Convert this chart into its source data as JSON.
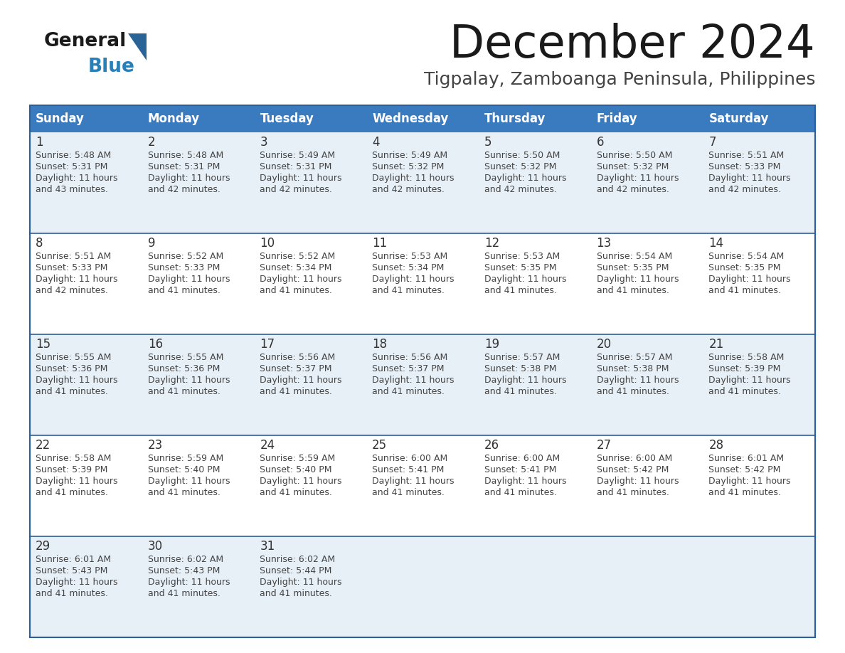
{
  "title": "December 2024",
  "subtitle": "Tigpalay, Zamboanga Peninsula, Philippines",
  "days_of_week": [
    "Sunday",
    "Monday",
    "Tuesday",
    "Wednesday",
    "Thursday",
    "Friday",
    "Saturday"
  ],
  "header_bg": "#3a7abf",
  "header_text": "#ffffff",
  "row_bg_light": "#e8f0f7",
  "row_bg_white": "#ffffff",
  "cell_border": "#2a5f9e",
  "text_color": "#444444",
  "day_num_color": "#333333",
  "logo_general_color": "#1a1a1a",
  "logo_blue_color": "#2980b9",
  "logo_triangle_color": "#2a6496",
  "title_color": "#1a1a1a",
  "subtitle_color": "#444444",
  "calendar_data": [
    [
      {
        "day": "1",
        "sunrise": "5:48 AM",
        "sunset": "5:31 PM",
        "daylight": "11 hours",
        "daylight2": "and 43 minutes."
      },
      {
        "day": "2",
        "sunrise": "5:48 AM",
        "sunset": "5:31 PM",
        "daylight": "11 hours",
        "daylight2": "and 42 minutes."
      },
      {
        "day": "3",
        "sunrise": "5:49 AM",
        "sunset": "5:31 PM",
        "daylight": "11 hours",
        "daylight2": "and 42 minutes."
      },
      {
        "day": "4",
        "sunrise": "5:49 AM",
        "sunset": "5:32 PM",
        "daylight": "11 hours",
        "daylight2": "and 42 minutes."
      },
      {
        "day": "5",
        "sunrise": "5:50 AM",
        "sunset": "5:32 PM",
        "daylight": "11 hours",
        "daylight2": "and 42 minutes."
      },
      {
        "day": "6",
        "sunrise": "5:50 AM",
        "sunset": "5:32 PM",
        "daylight": "11 hours",
        "daylight2": "and 42 minutes."
      },
      {
        "day": "7",
        "sunrise": "5:51 AM",
        "sunset": "5:33 PM",
        "daylight": "11 hours",
        "daylight2": "and 42 minutes."
      }
    ],
    [
      {
        "day": "8",
        "sunrise": "5:51 AM",
        "sunset": "5:33 PM",
        "daylight": "11 hours",
        "daylight2": "and 42 minutes."
      },
      {
        "day": "9",
        "sunrise": "5:52 AM",
        "sunset": "5:33 PM",
        "daylight": "11 hours",
        "daylight2": "and 41 minutes."
      },
      {
        "day": "10",
        "sunrise": "5:52 AM",
        "sunset": "5:34 PM",
        "daylight": "11 hours",
        "daylight2": "and 41 minutes."
      },
      {
        "day": "11",
        "sunrise": "5:53 AM",
        "sunset": "5:34 PM",
        "daylight": "11 hours",
        "daylight2": "and 41 minutes."
      },
      {
        "day": "12",
        "sunrise": "5:53 AM",
        "sunset": "5:35 PM",
        "daylight": "11 hours",
        "daylight2": "and 41 minutes."
      },
      {
        "day": "13",
        "sunrise": "5:54 AM",
        "sunset": "5:35 PM",
        "daylight": "11 hours",
        "daylight2": "and 41 minutes."
      },
      {
        "day": "14",
        "sunrise": "5:54 AM",
        "sunset": "5:35 PM",
        "daylight": "11 hours",
        "daylight2": "and 41 minutes."
      }
    ],
    [
      {
        "day": "15",
        "sunrise": "5:55 AM",
        "sunset": "5:36 PM",
        "daylight": "11 hours",
        "daylight2": "and 41 minutes."
      },
      {
        "day": "16",
        "sunrise": "5:55 AM",
        "sunset": "5:36 PM",
        "daylight": "11 hours",
        "daylight2": "and 41 minutes."
      },
      {
        "day": "17",
        "sunrise": "5:56 AM",
        "sunset": "5:37 PM",
        "daylight": "11 hours",
        "daylight2": "and 41 minutes."
      },
      {
        "day": "18",
        "sunrise": "5:56 AM",
        "sunset": "5:37 PM",
        "daylight": "11 hours",
        "daylight2": "and 41 minutes."
      },
      {
        "day": "19",
        "sunrise": "5:57 AM",
        "sunset": "5:38 PM",
        "daylight": "11 hours",
        "daylight2": "and 41 minutes."
      },
      {
        "day": "20",
        "sunrise": "5:57 AM",
        "sunset": "5:38 PM",
        "daylight": "11 hours",
        "daylight2": "and 41 minutes."
      },
      {
        "day": "21",
        "sunrise": "5:58 AM",
        "sunset": "5:39 PM",
        "daylight": "11 hours",
        "daylight2": "and 41 minutes."
      }
    ],
    [
      {
        "day": "22",
        "sunrise": "5:58 AM",
        "sunset": "5:39 PM",
        "daylight": "11 hours",
        "daylight2": "and 41 minutes."
      },
      {
        "day": "23",
        "sunrise": "5:59 AM",
        "sunset": "5:40 PM",
        "daylight": "11 hours",
        "daylight2": "and 41 minutes."
      },
      {
        "day": "24",
        "sunrise": "5:59 AM",
        "sunset": "5:40 PM",
        "daylight": "11 hours",
        "daylight2": "and 41 minutes."
      },
      {
        "day": "25",
        "sunrise": "6:00 AM",
        "sunset": "5:41 PM",
        "daylight": "11 hours",
        "daylight2": "and 41 minutes."
      },
      {
        "day": "26",
        "sunrise": "6:00 AM",
        "sunset": "5:41 PM",
        "daylight": "11 hours",
        "daylight2": "and 41 minutes."
      },
      {
        "day": "27",
        "sunrise": "6:00 AM",
        "sunset": "5:42 PM",
        "daylight": "11 hours",
        "daylight2": "and 41 minutes."
      },
      {
        "day": "28",
        "sunrise": "6:01 AM",
        "sunset": "5:42 PM",
        "daylight": "11 hours",
        "daylight2": "and 41 minutes."
      }
    ],
    [
      {
        "day": "29",
        "sunrise": "6:01 AM",
        "sunset": "5:43 PM",
        "daylight": "11 hours",
        "daylight2": "and 41 minutes."
      },
      {
        "day": "30",
        "sunrise": "6:02 AM",
        "sunset": "5:43 PM",
        "daylight": "11 hours",
        "daylight2": "and 41 minutes."
      },
      {
        "day": "31",
        "sunrise": "6:02 AM",
        "sunset": "5:44 PM",
        "daylight": "11 hours",
        "daylight2": "and 41 minutes."
      },
      null,
      null,
      null,
      null
    ]
  ]
}
